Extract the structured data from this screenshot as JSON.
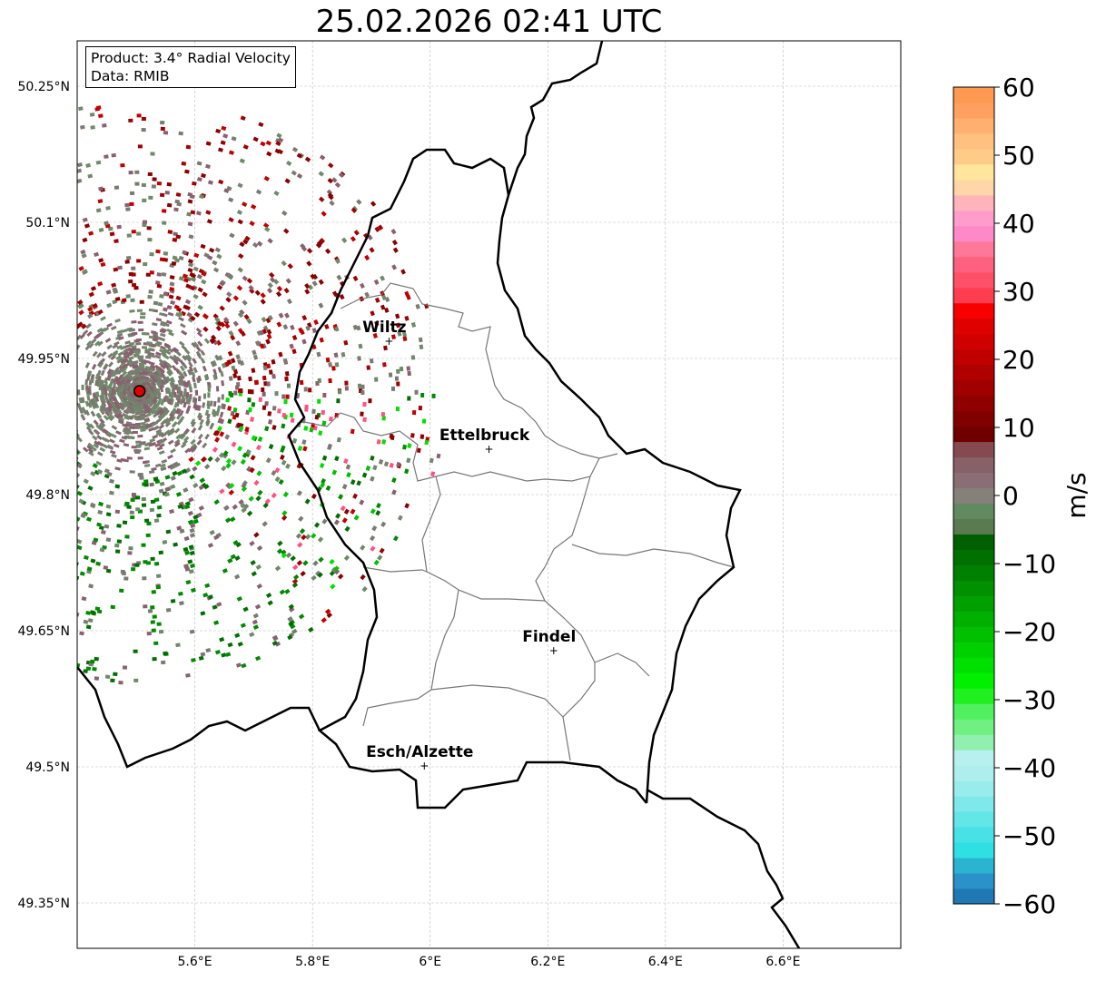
{
  "title": "25.02.2026 02:41 UTC",
  "info_box": {
    "product": "Product: 3.4° Radial Velocity",
    "data": "Data: RMIB"
  },
  "map": {
    "extent": {
      "lon": [
        5.4,
        6.8
      ],
      "lat": [
        49.3,
        50.3
      ]
    },
    "lon_ticks": [
      {
        "v": 5.6,
        "label": "5.6°E"
      },
      {
        "v": 5.8,
        "label": "5.8°E"
      },
      {
        "v": 6.0,
        "label": "6°E"
      },
      {
        "v": 6.2,
        "label": "6.2°E"
      },
      {
        "v": 6.4,
        "label": "6.4°E"
      },
      {
        "v": 6.6,
        "label": "6.6°E"
      }
    ],
    "lat_ticks": [
      {
        "v": 50.25,
        "label": "50.25°N"
      },
      {
        "v": 50.1,
        "label": "50.1°N"
      },
      {
        "v": 49.95,
        "label": "49.95°N"
      },
      {
        "v": 49.8,
        "label": "49.8°N"
      },
      {
        "v": 49.65,
        "label": "49.65°N"
      },
      {
        "v": 49.5,
        "label": "49.5°N"
      },
      {
        "v": 49.35,
        "label": "49.35°N"
      }
    ],
    "radar": {
      "lon": 5.506,
      "lat": 49.914,
      "color": "#e00000"
    },
    "cities": [
      {
        "name": "Wiltz",
        "lon": 5.93,
        "lat": 49.969
      },
      {
        "name": "Ettelbruck",
        "lon": 6.1,
        "lat": 49.85
      },
      {
        "name": "Findel",
        "lon": 6.21,
        "lat": 49.628
      },
      {
        "name": "Esch/Alzette",
        "lon": 5.99,
        "lat": 49.501
      }
    ]
  },
  "colorbar": {
    "label": "m/s",
    "min": -60,
    "max": 60,
    "ticks": [
      {
        "v": 60,
        "label": "60"
      },
      {
        "v": 50,
        "label": "50"
      },
      {
        "v": 40,
        "label": "40"
      },
      {
        "v": 30,
        "label": "30"
      },
      {
        "v": 20,
        "label": "20"
      },
      {
        "v": 10,
        "label": "10"
      },
      {
        "v": 0,
        "label": "0"
      },
      {
        "v": -10,
        "label": "−10"
      },
      {
        "v": -20,
        "label": "−20"
      },
      {
        "v": -30,
        "label": "−30"
      },
      {
        "v": -40,
        "label": "−40"
      },
      {
        "v": -50,
        "label": "−50"
      },
      {
        "v": -60,
        "label": "−60"
      }
    ],
    "colors": [
      "#1f78b4",
      "#2a92c8",
      "#2ab4d0",
      "#2ee0e4",
      "#48e2e6",
      "#62e6e8",
      "#7ee8ea",
      "#98ecec",
      "#aeeeee",
      "#b8f0f0",
      "#90f0b0",
      "#70f080",
      "#50f060",
      "#20f020",
      "#00f000",
      "#00e000",
      "#00d000",
      "#00c000",
      "#00b000",
      "#00a000",
      "#009000",
      "#008000",
      "#007000",
      "#006000",
      "#5a7a50",
      "#628a60",
      "#86807a",
      "#8a6e76",
      "#886068",
      "#844a50",
      "#700000",
      "#800000",
      "#900000",
      "#a00000",
      "#b00000",
      "#c00000",
      "#d00000",
      "#e00000",
      "#f80000",
      "#ff3d50",
      "#ff5068",
      "#ff6080",
      "#ff7898",
      "#ff88c8",
      "#ff9ccc",
      "#ffb4bc",
      "#ffd6a8",
      "#ffe69c",
      "#ffcc88",
      "#ffc080",
      "#ffb070",
      "#ffa060",
      "#ff9850"
    ]
  }
}
